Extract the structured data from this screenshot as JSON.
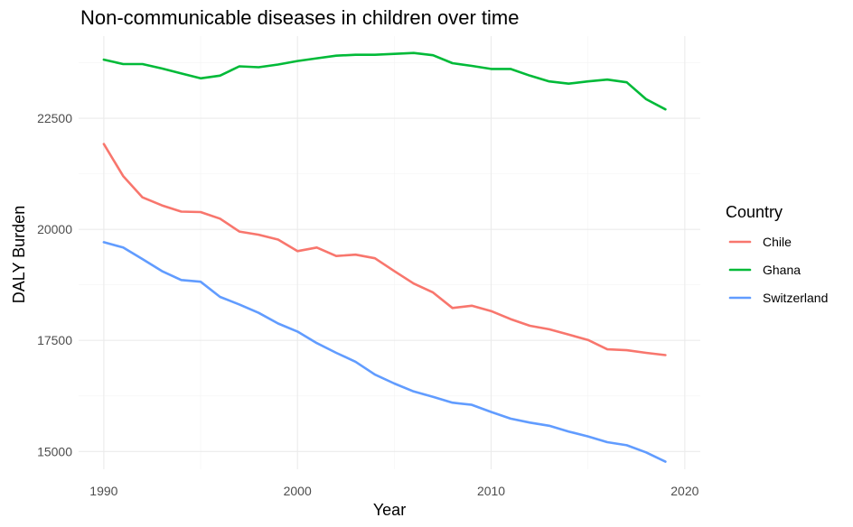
{
  "chart_data": {
    "type": "line",
    "title": "Non-communicable diseases in children over time",
    "xlabel": "Year",
    "ylabel": "DALY Burden",
    "xlim": [
      1988.7,
      2020.8
    ],
    "ylim": [
      14600,
      24350
    ],
    "x_ticks": [
      1990,
      2000,
      2010,
      2020
    ],
    "y_ticks": [
      15000,
      17500,
      20000,
      22500
    ],
    "grid": true,
    "legend": {
      "title": "Country",
      "position": "right"
    },
    "x": [
      1990,
      1991,
      1992,
      1993,
      1994,
      1995,
      1996,
      1997,
      1998,
      1999,
      2000,
      2001,
      2002,
      2003,
      2004,
      2005,
      2006,
      2007,
      2008,
      2009,
      2010,
      2011,
      2012,
      2013,
      2014,
      2015,
      2016,
      2017,
      2018,
      2019
    ],
    "series": [
      {
        "name": "Chile",
        "color": "#F8766D",
        "values": [
          21920,
          21200,
          20720,
          20540,
          20400,
          20390,
          20240,
          19950,
          19880,
          19770,
          19510,
          19590,
          19400,
          19430,
          19350,
          19060,
          18780,
          18580,
          18230,
          18280,
          18160,
          17980,
          17830,
          17750,
          17630,
          17510,
          17300,
          17280,
          17220,
          17170
        ]
      },
      {
        "name": "Ghana",
        "color": "#00BA38",
        "values": [
          23820,
          23720,
          23720,
          23620,
          23510,
          23400,
          23460,
          23670,
          23650,
          23710,
          23790,
          23850,
          23910,
          23930,
          23930,
          23950,
          23970,
          23920,
          23740,
          23680,
          23610,
          23610,
          23460,
          23330,
          23280,
          23330,
          23370,
          23310,
          22930,
          22700
        ]
      },
      {
        "name": "Switzerland",
        "color": "#619CFF",
        "values": [
          19710,
          19590,
          19330,
          19060,
          18860,
          18820,
          18480,
          18310,
          18120,
          17880,
          17700,
          17440,
          17220,
          17020,
          16730,
          16530,
          16350,
          16230,
          16100,
          16050,
          15890,
          15740,
          15650,
          15580,
          15450,
          15340,
          15210,
          15140,
          14980,
          14770
        ]
      }
    ]
  }
}
